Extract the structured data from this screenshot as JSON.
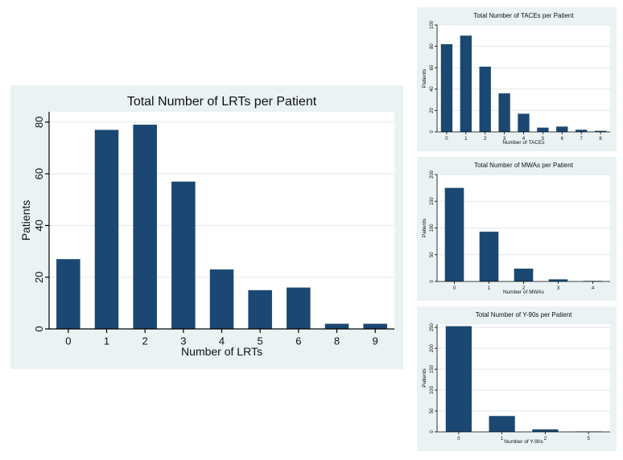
{
  "colors": {
    "bar": "#1b4872",
    "panel_bg": "#eaf2f3",
    "plot_bg": "#ffffff",
    "grid": "#dfe9ea",
    "axis": "#000000"
  },
  "chart_data": [
    {
      "type": "bar",
      "title": "Total Number of LRTs per Patient",
      "xlabel": "Number of LRTs",
      "ylabel": "Patients",
      "categories": [
        "0",
        "1",
        "2",
        "3",
        "4",
        "5",
        "6",
        "8",
        "9"
      ],
      "values": [
        27,
        77,
        79,
        57,
        23,
        15,
        16,
        2,
        2
      ],
      "yticks": [
        0,
        20,
        40,
        60,
        80
      ],
      "ylim": [
        0,
        84
      ],
      "grid": true
    },
    {
      "type": "bar",
      "title": "Total Number of TACEs per Patient",
      "xlabel": "Number of TACEs",
      "ylabel": "Patients",
      "categories": [
        "0",
        "1",
        "2",
        "3",
        "4",
        "5",
        "6",
        "7",
        "8"
      ],
      "values": [
        82,
        90,
        61,
        36,
        17,
        4,
        5,
        2,
        1
      ],
      "yticks": [
        0,
        20,
        40,
        60,
        80,
        100
      ],
      "ylim": [
        0,
        100
      ],
      "grid": true
    },
    {
      "type": "bar",
      "title": "Total Number of MWAs per Patient",
      "xlabel": "Number of MWAs",
      "ylabel": "Patients",
      "categories": [
        "0",
        "1",
        "2",
        "3",
        "4"
      ],
      "values": [
        175,
        93,
        24,
        4,
        1
      ],
      "yticks": [
        0,
        50,
        100,
        150,
        200
      ],
      "ylim": [
        0,
        200
      ],
      "grid": true
    },
    {
      "type": "bar",
      "title": "Total Number of Y-90s per Patient",
      "xlabel": "Number of Y-90s",
      "ylabel": "Patients",
      "categories": [
        "0",
        "1",
        "2",
        "5"
      ],
      "values": [
        253,
        38,
        6,
        1
      ],
      "yticks": [
        0,
        50,
        100,
        150,
        200,
        250
      ],
      "ylim": [
        0,
        258
      ],
      "grid": true
    }
  ]
}
